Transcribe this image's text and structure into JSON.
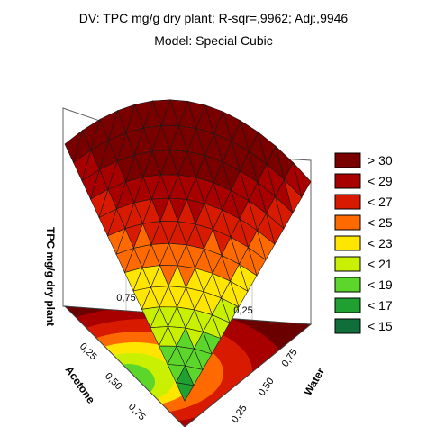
{
  "chart_data": {
    "type": "surface-3d-ternary",
    "title_top": "DV: TPC mg/g dry plant; R-sqr=,9962; Adj:,9946",
    "subtitle": "Model: Special Cubic",
    "zlabel": "TPC mg/g dry plant",
    "axes": [
      {
        "name": "Acetone",
        "ticks": [
          "0,25",
          "0,50",
          "0,75"
        ]
      },
      {
        "name": "Water",
        "ticks": [
          "0,75",
          "0,50",
          "0,25"
        ]
      }
    ],
    "back_wall_ticks": [
      "0,75",
      "0,25"
    ],
    "legend": [
      {
        "label": "> 30",
        "color": "#7a0000"
      },
      {
        "label": "< 29",
        "color": "#a80000"
      },
      {
        "label": "< 27",
        "color": "#d81a00"
      },
      {
        "label": "< 25",
        "color": "#ff6a00"
      },
      {
        "label": "< 23",
        "color": "#ffe600"
      },
      {
        "label": "< 21",
        "color": "#c8f000"
      },
      {
        "label": "< 19",
        "color": "#5cd62a"
      },
      {
        "label": "< 17",
        "color": "#1fa030"
      },
      {
        "label": "< 15",
        "color": "#0f6e3a"
      }
    ]
  }
}
